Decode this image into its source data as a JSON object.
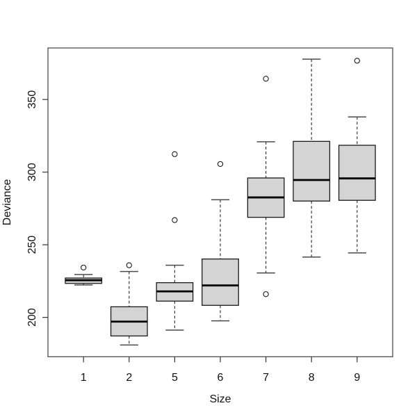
{
  "chart_data": {
    "type": "boxplot",
    "title": "",
    "xlabel": "Size",
    "ylabel": "Deviance",
    "categories": [
      "1",
      "2",
      "5",
      "6",
      "7",
      "8",
      "9"
    ],
    "yticks": [
      200,
      250,
      300,
      350
    ],
    "ylim": [
      172.9,
      385.5
    ],
    "grid": false,
    "legend": false,
    "boxes": [
      {
        "category": "1",
        "min": 222.3,
        "q1": 223.4,
        "median": 225.6,
        "q3": 227.1,
        "max": 229.5,
        "outliers": [
          234.3
        ]
      },
      {
        "category": "2",
        "min": 181.0,
        "q1": 187.2,
        "median": 197.1,
        "q3": 207.3,
        "max": 231.6,
        "outliers": [
          235.9
        ]
      },
      {
        "category": "5",
        "min": 191.2,
        "q1": 211.2,
        "median": 217.9,
        "q3": 223.9,
        "max": 235.9,
        "outliers": [
          267.0,
          312.4
        ]
      },
      {
        "category": "6",
        "min": 197.6,
        "q1": 208.3,
        "median": 222.0,
        "q3": 240.2,
        "max": 281.0,
        "outliers": [
          305.6
        ]
      },
      {
        "category": "7",
        "min": 230.6,
        "q1": 268.9,
        "median": 282.6,
        "q3": 296.0,
        "max": 320.9,
        "outliers": [
          216.0,
          364.3
        ]
      },
      {
        "category": "8",
        "min": 241.5,
        "q1": 280.1,
        "median": 294.6,
        "q3": 321.2,
        "max": 377.8,
        "outliers": []
      },
      {
        "category": "9",
        "min": 244.4,
        "q1": 280.6,
        "median": 295.7,
        "q3": 318.5,
        "max": 338.0,
        "outliers": [
          376.7
        ]
      }
    ],
    "colors": {
      "background": "#ffffff",
      "box_fill": "#d4d4d4",
      "box_border": "#1a1a1a",
      "median_line": "#000000",
      "whisker": "#3a3a3a",
      "staple": "#4a4a4a",
      "outlier_stroke": "#1a1a1a",
      "frame": "#4d4d4d",
      "tick": "#333333",
      "text": "#111111"
    }
  }
}
